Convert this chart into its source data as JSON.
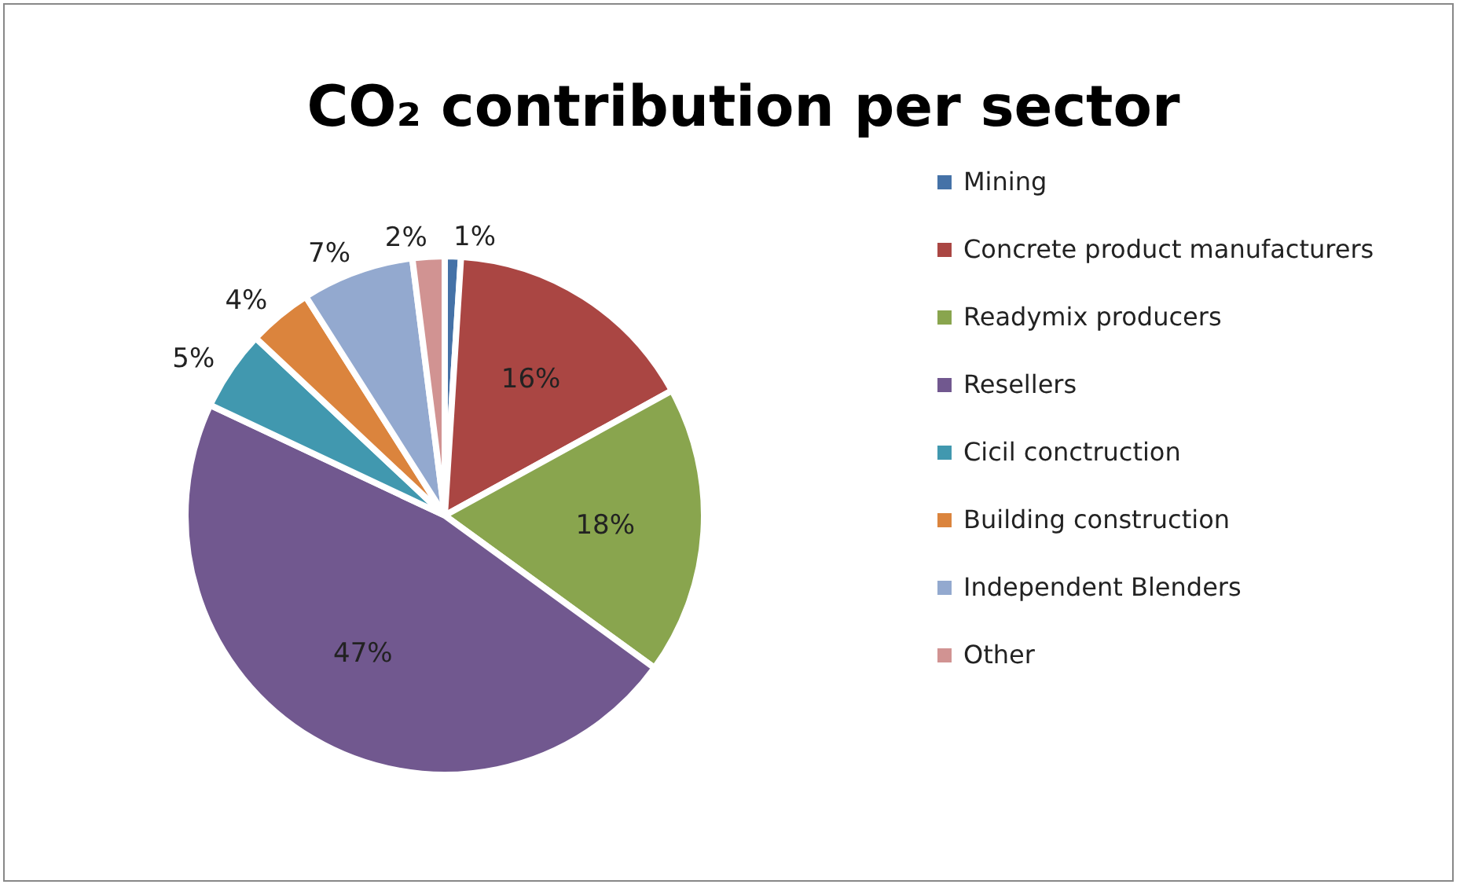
{
  "chart_data": {
    "type": "pie",
    "title": "CO₂ contribution per sector",
    "categories": [
      "Mining",
      "Concrete product manufacturers",
      "Readymix producers",
      "Resellers",
      "Cicil conctruction",
      "Building construction",
      "Independent Blenders",
      "Other"
    ],
    "values": [
      1,
      16,
      18,
      47,
      5,
      4,
      7,
      2
    ],
    "colors": [
      "#4572a7",
      "#aa4643",
      "#89a54e",
      "#71588f",
      "#4198af",
      "#db843d",
      "#93a9cf",
      "#d19392"
    ],
    "value_labels": [
      "1%",
      "16%",
      "18%",
      "47%",
      "5%",
      "4%",
      "7%",
      "2%"
    ],
    "legend": "right"
  }
}
